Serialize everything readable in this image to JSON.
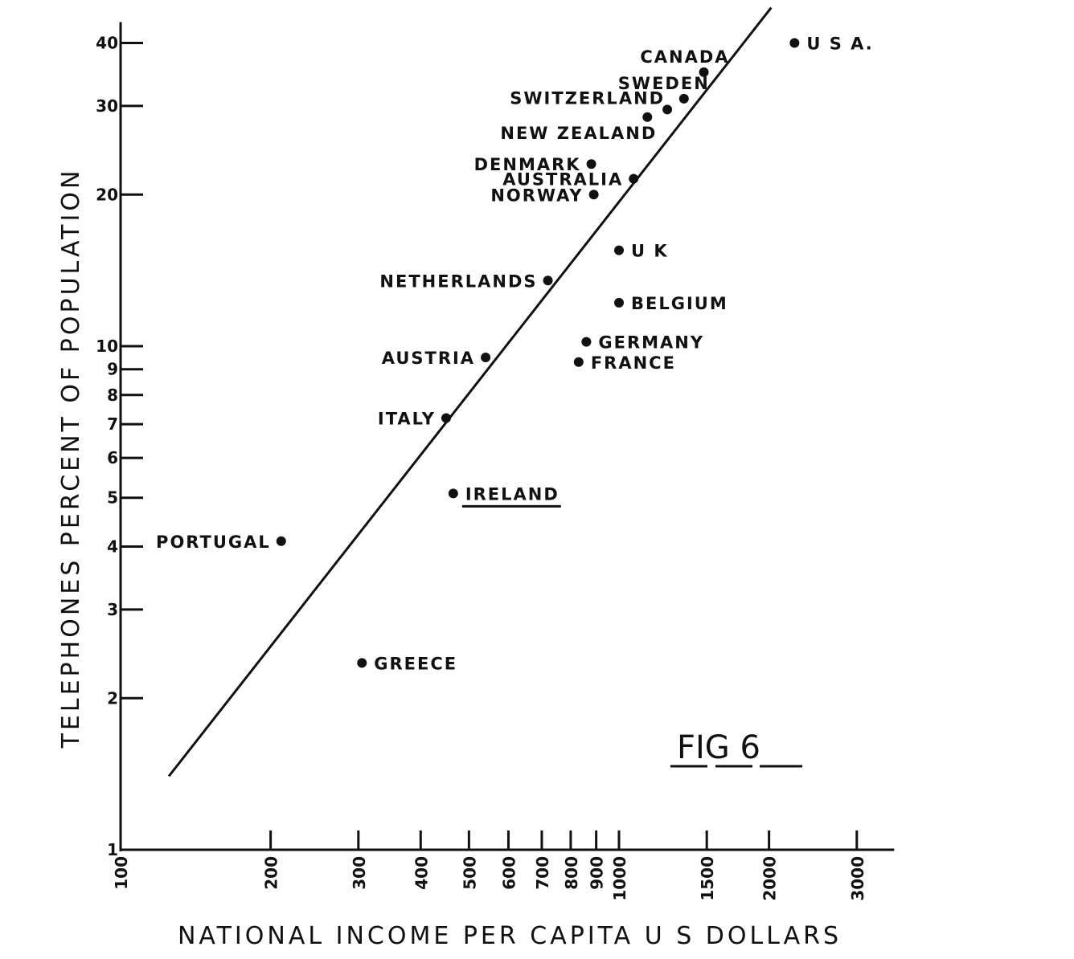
{
  "chart_data": {
    "type": "scatter",
    "xlabel": "NATIONAL  INCOME  PER  CAPITA  U S  DOLLARS",
    "ylabel": "TELEPHONES  PERCENT  OF  POPULATION",
    "annotation": "FIG 6",
    "x_scale": "log",
    "y_scale": "log",
    "xlim": [
      100,
      3500
    ],
    "ylim": [
      1,
      44
    ],
    "x_ticks": [
      {
        "value": 100,
        "label": "100"
      },
      {
        "value": 200,
        "label": "200"
      },
      {
        "value": 300,
        "label": "300"
      },
      {
        "value": 400,
        "label": "400"
      },
      {
        "value": 500,
        "label": "500"
      },
      {
        "value": 600,
        "label": "600"
      },
      {
        "value": 700,
        "label": "700"
      },
      {
        "value": 800,
        "label": "800"
      },
      {
        "value": 900,
        "label": "900"
      },
      {
        "value": 1000,
        "label": "1000"
      },
      {
        "value": 1500,
        "label": "1500"
      },
      {
        "value": 2000,
        "label": "2000"
      },
      {
        "value": 3000,
        "label": "3000"
      }
    ],
    "y_ticks": [
      {
        "value": 1,
        "label": "1"
      },
      {
        "value": 2,
        "label": "2"
      },
      {
        "value": 3,
        "label": "3"
      },
      {
        "value": 4,
        "label": "4"
      },
      {
        "value": 5,
        "label": "5"
      },
      {
        "value": 6,
        "label": "6"
      },
      {
        "value": 7,
        "label": "7"
      },
      {
        "value": 8,
        "label": "8"
      },
      {
        "value": 9,
        "label": "9"
      },
      {
        "value": 10,
        "label": "10"
      },
      {
        "value": 20,
        "label": "20"
      },
      {
        "value": 30,
        "label": "30"
      },
      {
        "value": 40,
        "label": "40"
      }
    ],
    "points": [
      {
        "name": "U S A.",
        "x": 2250,
        "y": 40,
        "label_side": "right"
      },
      {
        "name": "CANADA",
        "x": 1480,
        "y": 35,
        "label_side": "above-left"
      },
      {
        "name": "SWEDEN",
        "x": 1350,
        "y": 31,
        "label_side": "above-left"
      },
      {
        "name": "SWITZERLAND",
        "x": 1250,
        "y": 29.5,
        "label_side": "left-up"
      },
      {
        "name": "NEW ZEALAND",
        "x": 1140,
        "y": 28.5,
        "label_side": "left-down"
      },
      {
        "name": "DENMARK",
        "x": 880,
        "y": 23,
        "label_side": "left"
      },
      {
        "name": "AUSTRALIA",
        "x": 1070,
        "y": 21.5,
        "label_side": "left"
      },
      {
        "name": "NORWAY",
        "x": 890,
        "y": 20,
        "label_side": "left"
      },
      {
        "name": "U K",
        "x": 1000,
        "y": 15.5,
        "label_side": "right"
      },
      {
        "name": "NETHERLANDS",
        "x": 720,
        "y": 13.5,
        "label_side": "left"
      },
      {
        "name": "BELGIUM",
        "x": 1000,
        "y": 12.2,
        "label_side": "right"
      },
      {
        "name": "GERMANY",
        "x": 860,
        "y": 10.2,
        "label_side": "right"
      },
      {
        "name": "FRANCE",
        "x": 830,
        "y": 9.3,
        "label_side": "right"
      },
      {
        "name": "AUSTRIA",
        "x": 540,
        "y": 9.5,
        "label_side": "left"
      },
      {
        "name": "ITALY",
        "x": 450,
        "y": 7.2,
        "label_side": "left"
      },
      {
        "name": "IRELAND",
        "x": 465,
        "y": 5.1,
        "label_side": "right",
        "underline": true
      },
      {
        "name": "PORTUGAL",
        "x": 210,
        "y": 4.1,
        "label_side": "left"
      },
      {
        "name": "GREECE",
        "x": 305,
        "y": 2.35,
        "label_side": "right"
      }
    ],
    "trend_line": {
      "x": [
        125,
        2020
      ],
      "y": [
        1.4,
        47
      ]
    },
    "grid": false,
    "legend": "none"
  }
}
